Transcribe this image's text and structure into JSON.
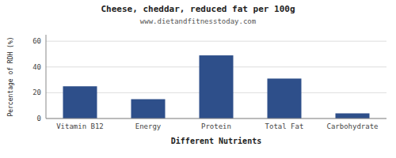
{
  "chart_data": {
    "type": "bar",
    "title": "Cheese, cheddar, reduced fat per 100g",
    "subtitle": "www.dietandfitnesstoday.com",
    "xlabel": "Different Nutrients",
    "ylabel": "Percentage of RDH (%)",
    "categories": [
      "Vitamin B12",
      "Energy",
      "Protein",
      "Total Fat",
      "Carbohydrate"
    ],
    "values": [
      25,
      15,
      49,
      31,
      4
    ],
    "color": "#2e4f8a",
    "ylim": [
      0,
      65
    ],
    "yticks": [
      0,
      20,
      40,
      60
    ],
    "grid": true
  }
}
